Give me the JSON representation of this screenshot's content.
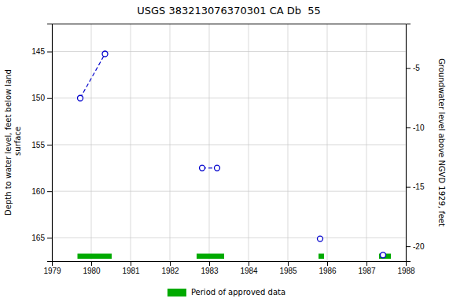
{
  "chart_data": {
    "type": "line",
    "title": "USGS 383213076370301 CA Db  55",
    "ylabel": "Depth to water level, feet below land\n surface",
    "y2label": "Groundwater level above NGVD 1929, feet",
    "xlim": [
      1979,
      1988
    ],
    "xticks": [
      1979,
      1980,
      1981,
      1982,
      1983,
      1984,
      1985,
      1986,
      1987,
      1988
    ],
    "ylim": [
      167.5,
      142.0
    ],
    "yticks": [
      145,
      150,
      155,
      160,
      165
    ],
    "y2lim": [
      -21.25,
      -1.25
    ],
    "y2ticks": [
      -5,
      -10,
      -15,
      -20
    ],
    "grid": true,
    "legend": "bottom",
    "series": [
      {
        "x": [
          1979.72,
          1980.35
        ],
        "values": [
          150.0,
          145.25
        ],
        "color": "#0000cc",
        "line_style": "dashed",
        "marker": "circle"
      },
      {
        "x": [
          1982.82,
          1983.2
        ],
        "values": [
          157.5,
          157.5
        ],
        "color": "#0000cc",
        "line_style": "dashed",
        "marker": "circle"
      },
      {
        "x": [
          1985.82
        ],
        "values": [
          165.1
        ],
        "color": "#0000cc",
        "line_style": "none",
        "marker": "circle"
      },
      {
        "x": [
          1987.42
        ],
        "values": [
          166.85
        ],
        "color": "#0000cc",
        "line_style": "none",
        "marker": "circle"
      }
    ],
    "periods": {
      "name": "Period of approved data",
      "color": "#00aa00",
      "ranges": [
        {
          "start": 1979.65,
          "end": 1980.52
        },
        {
          "start": 1982.68,
          "end": 1983.38
        },
        {
          "start": 1985.78,
          "end": 1985.92
        },
        {
          "start": 1987.32,
          "end": 1987.62
        }
      ]
    }
  }
}
